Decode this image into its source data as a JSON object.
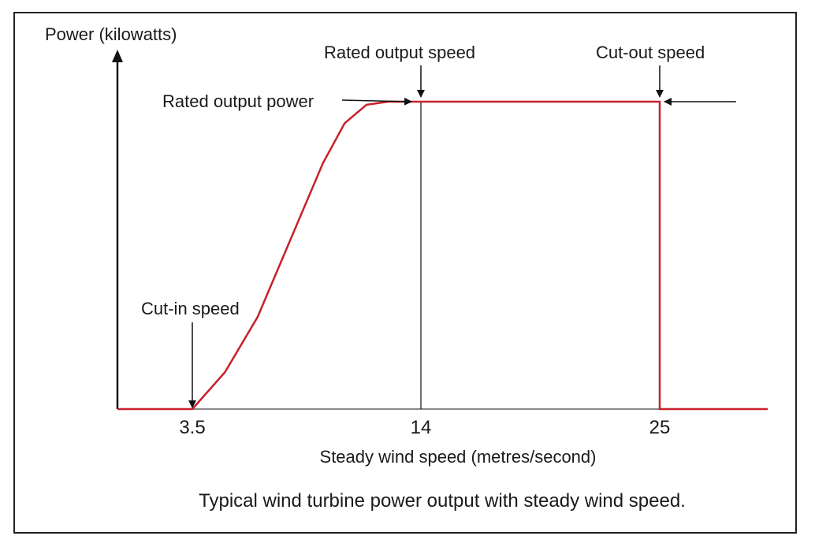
{
  "chart_data": {
    "type": "line",
    "title": "",
    "ylabel": "Power (kilowatts)",
    "xlabel": "Steady wind speed (metres/second)",
    "caption": "Typical wind turbine power output with steady wind speed.",
    "x_ticks": [
      "3.5",
      "14",
      "25"
    ],
    "x_tick_values": [
      3.5,
      14,
      25
    ],
    "xlim": [
      0,
      28
    ],
    "ylim": [
      0,
      1.2
    ],
    "grid": false,
    "line_color": "#c8202a",
    "axis_color": "#111111",
    "series": [
      {
        "x": [
          0,
          3.5,
          5,
          6.5,
          8,
          9.5,
          10.5,
          11.5,
          12.5,
          14,
          25,
          25,
          28
        ],
        "y": [
          0,
          0,
          0.12,
          0.3,
          0.55,
          0.8,
          0.93,
          0.99,
          1.0,
          1.0,
          1.0,
          0,
          0
        ]
      }
    ],
    "annotations": {
      "cut_in": "Cut-in speed",
      "rated_speed": "Rated output speed",
      "rated_power": "Rated output power",
      "cut_out": "Cut-out speed"
    }
  }
}
